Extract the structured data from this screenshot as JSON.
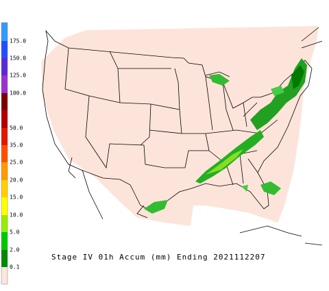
{
  "title": "Stage IV 01h Accum (mm) Ending 2021112207",
  "legend": {
    "labels": [
      "175.0",
      "150.0",
      "125.0",
      "100.0",
      "50.0",
      "35.0",
      "25.0",
      "20.0",
      "15.0",
      "10.0",
      "5.0",
      "2.0",
      "0.1"
    ]
  }
}
